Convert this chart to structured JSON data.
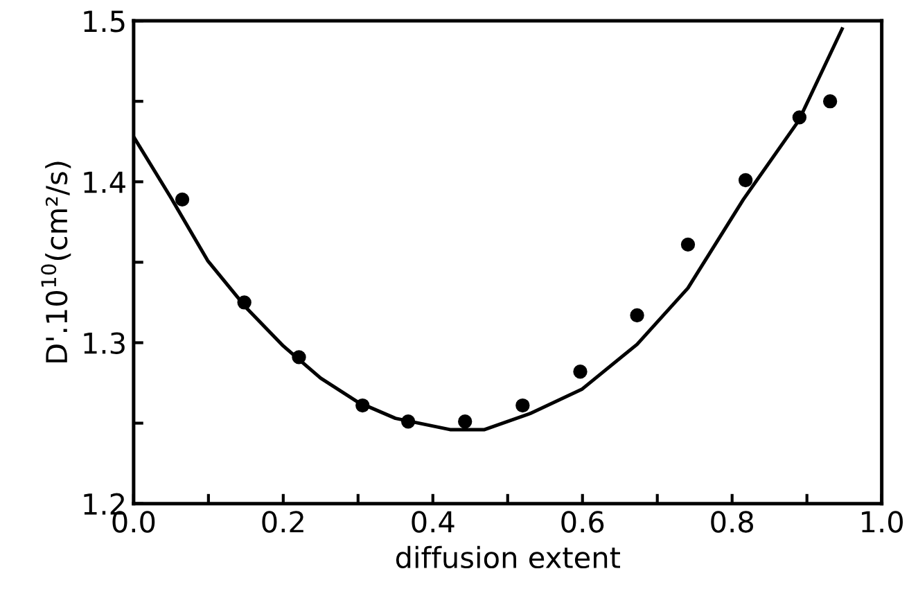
{
  "chart_data": {
    "type": "scatter",
    "xlabel": "diffusion extent",
    "ylabel": "D'.10$^{10}$(cm²/s)",
    "xlim": [
      0.0,
      1.0
    ],
    "ylim": [
      1.2,
      1.5
    ],
    "xticks": [
      {
        "value": 0.0,
        "label": "0.0"
      },
      {
        "value": 0.1,
        "label": null
      },
      {
        "value": 0.2,
        "label": "0.2"
      },
      {
        "value": 0.3,
        "label": null
      },
      {
        "value": 0.4,
        "label": "0.4"
      },
      {
        "value": 0.5,
        "label": null
      },
      {
        "value": 0.6,
        "label": "0.6"
      },
      {
        "value": 0.7,
        "label": null
      },
      {
        "value": 0.8,
        "label": "0.8"
      },
      {
        "value": 0.9,
        "label": null
      },
      {
        "value": 1.0,
        "label": "1.0"
      }
    ],
    "yticks": [
      {
        "value": 1.2,
        "label": "1.2"
      },
      {
        "value": 1.25,
        "label": null
      },
      {
        "value": 1.3,
        "label": "1.3"
      },
      {
        "value": 1.35,
        "label": null
      },
      {
        "value": 1.4,
        "label": "1.4"
      },
      {
        "value": 1.45,
        "label": null
      },
      {
        "value": 1.5,
        "label": "1.5"
      }
    ],
    "grid": false,
    "legend": false,
    "series": [
      {
        "color": "#000000",
        "marker": "circle",
        "x": [
          0.065,
          0.148,
          0.221,
          0.306,
          0.367,
          0.443,
          0.52,
          0.597,
          0.673,
          0.741,
          0.818,
          0.89,
          0.931
        ],
        "values": [
          1.389,
          1.325,
          1.291,
          1.261,
          1.251,
          1.251,
          1.261,
          1.282,
          1.317,
          1.361,
          1.401,
          1.44,
          1.45
        ]
      },
      {
        "type": "line",
        "color": "#000000",
        "marker": "none",
        "line_style": "solid",
        "x": [
          0.0,
          0.05,
          0.099,
          0.15,
          0.2,
          0.25,
          0.3,
          0.35,
          0.423,
          0.469,
          0.53,
          0.599,
          0.673,
          0.741,
          0.815,
          0.889,
          0.947
        ],
        "values": [
          1.428,
          1.39,
          1.351,
          1.322,
          1.298,
          1.278,
          1.263,
          1.253,
          1.246,
          1.246,
          1.256,
          1.271,
          1.299,
          1.334,
          1.389,
          1.438,
          1.495
        ]
      }
    ]
  }
}
